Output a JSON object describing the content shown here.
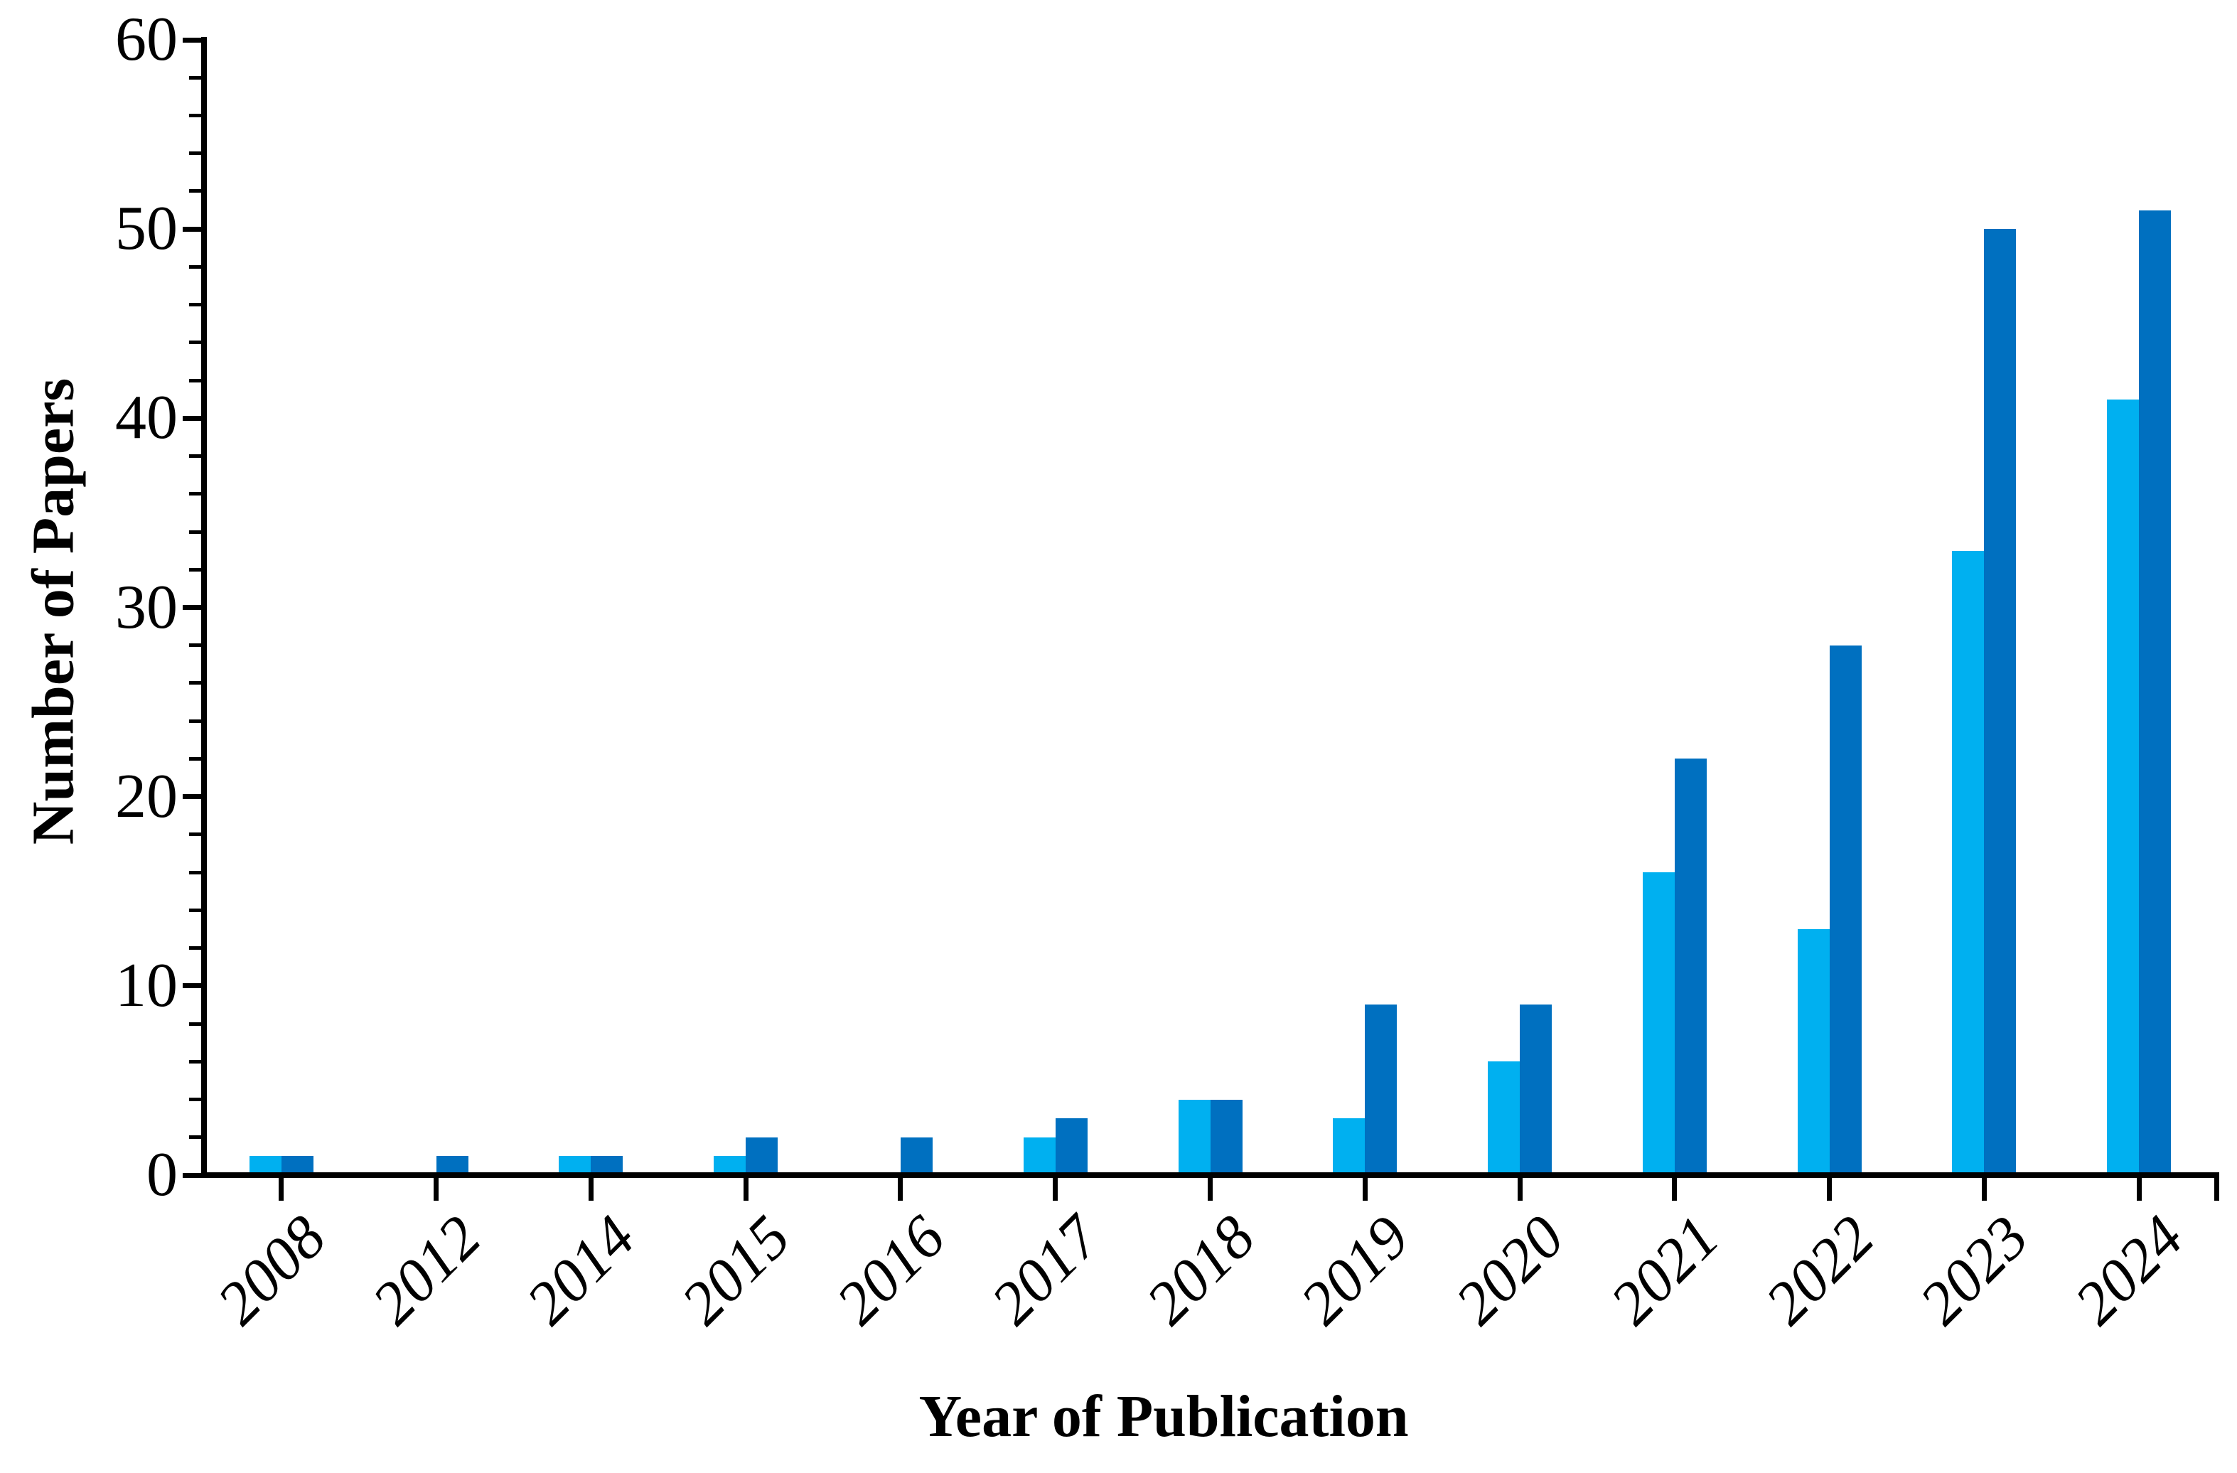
{
  "chart_data": {
    "type": "bar",
    "title": "",
    "xlabel": "Year of Publication",
    "ylabel": "Number of Papers",
    "categories": [
      "2008",
      "2012",
      "2014",
      "2015",
      "2016",
      "2017",
      "2018",
      "2019",
      "2020",
      "2021",
      "2022",
      "2023",
      "2024"
    ],
    "series": [
      {
        "name": "light-blue-series",
        "color": "#00B0F0",
        "values": [
          1,
          0,
          1,
          1,
          0,
          2,
          4,
          3,
          6,
          16,
          13,
          33,
          41
        ]
      },
      {
        "name": "dark-blue-series",
        "color": "#0070C0",
        "values": [
          1,
          1,
          1,
          2,
          2,
          3,
          4,
          9,
          9,
          22,
          28,
          50,
          51
        ]
      }
    ],
    "ylim": [
      0,
      60
    ],
    "y_major_ticks": [
      0,
      10,
      20,
      30,
      40,
      50,
      60
    ],
    "y_minor_interval": 2,
    "grid": false,
    "legend": "none",
    "axis_color": "#000000",
    "background_color": "#FFFFFF"
  }
}
